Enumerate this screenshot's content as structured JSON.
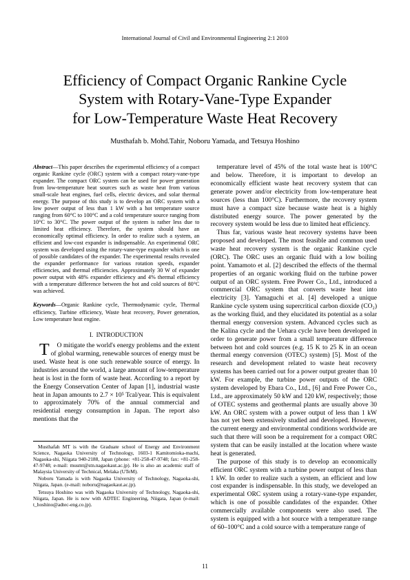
{
  "journal": "International Journal of Civil and Environmental Engineering 2:1 2010",
  "title_line1": "Efficiency of Compact Organic Rankine Cycle",
  "title_line2": "System with Rotary-Vane-Type Expander",
  "title_line3": "for Low-Temperature Waste Heat Recovery",
  "authors": "Musthafah b. Mohd.Tahir, Noboru Yamada, and Tetsuya Hoshino",
  "abstract_label": "Abstract",
  "abstract_text": "—This paper describes the experimental efficiency of a compact organic Rankine cycle (ORC) system with a compact rotary-vane-type expander. The compact ORC system can be used for power generation from low-temperature heat sources such as waste heat from various small-scale heat engines, fuel cells, electric devices, and solar thermal energy. The purpose of this study is to develop an ORC system with a low power output of less than 1 kW with a hot temperature source ranging from 60°C to 100°C and a cold temperature source ranging from 10°C to 30°C. The power output of the system is rather less due to limited heat efficiency. Therefore, the system should have an economically optimal efficiency. In order to realize such a system, an efficient and low-cost expander is indispensable. An experimental ORC system was developed using the rotary-vane-type expander which is one of possible candidates of the expander. The experimental results revealed the expander performance for various rotation speeds, expander efficiencies, and thermal efficiencies. Approximately 30 W of expander power output with 48% expander efficiency and 4% thermal efficiency with a temperature difference between the hot and cold sources of 80°C was achieved.",
  "keywords_label": "Keywords",
  "keywords_text": "—Organic Rankine cycle, Thermodynamic cycle, Thermal efficiency, Turbine efficiency, Waste heat recovery, Power generation, Low temperature heat engine.",
  "section1_num": "I.",
  "section1_title": "INTRODUCTION",
  "intro_dropcap": "T",
  "intro_first": "O mitigate the world's energy problems and the extent of global warming, renewable sources of energy must be used. Waste heat is one such renewable source of energy. In industries around the world, a large amount of low-temperature heat is lost in the form of waste heat. According to a report by the Energy Conservation Center of Japan [1], industrial waste heat in Japan amounts to 2.7 × 10⁵ Tcal/year. This is equivalent to approximately 70% of the annual commercial and residential energy consumption in Japan. The report also mentions that the",
  "col2_p1": "temperature level of 45% of the total waste heat is 100°C and below. Therefore, it is important to develop an economically efficient waste heat recovery system that can generate power and/or electricity from low-temperature heat sources (less than 100°C). Furthermore, the recovery system must have a compact size because waste heat is a highly distributed energy source. The power generated by the recovery system would be less due to limited heat efficiency.",
  "col2_p2": "Thus far, various waste heat recovery systems have been proposed and developed. The most feasible and common used waste heat recovery system is the organic Rankine cycle (ORC). The ORC uses an organic fluid with a low boiling point. Yamamoto et al. [2] described the effects of the thermal properties of an organic working fluid on the turbine power output of an ORC system. Free Power Co., Ltd., introduced a commercial ORC system that converts waste heat into electricity [3]. Yamaguchi et al. [4] developed a unique Rankine cycle system using supercritical carbon dioxide (CO₂) as the working fluid, and they elucidated its potential as a solar thermal energy conversion system. Advanced cycles such as the Kalina cycle and the Uehara cycle have been developed in order to generate power from a small temperature difference between hot and cold sources (e.g. 15 K to 25 K in an ocean thermal energy conversion (OTEC) system) [5]. Most of the research and development related to waste heat recovery systems has been carried out for a power output greater than 10 kW. For example, the turbine power outputs of the ORC system developed by Ebara Co., Ltd., [6] and Free Power Co., Ltd., are approximately 50 kW and 120 kW, respectively; those of OTEC systems and geothermal plants are usually above 30 kW. An ORC system with a power output of less than 1 kW has not yet been extensively studied and developed. However, the current energy and environmental conditions worldwide are such that there will soon be a requirement for a compact ORC system that can be easily installed at the location where waste heat is generated.",
  "col2_p3": "The purpose of this study is to develop an economically efficient ORC system with a turbine power output of less than 1 kW. In order to realize such a system, an efficient and low cost expander is indispensable. In this study, we developed an experimental ORC system using a rotary-vane-type expander, which is one of possible candidates of the expander. Other commercially available components were also used. The system is equipped with a hot source with a temperature range of 60–100°C and a cold source with a temperature range of",
  "fn1": "Musthafah MT is with the Graduate school of Energy and Environment Science, Nagaoka University of Technology, 1603-1 Kamitomioka-machi, Nagaoka-shi, Niigata 940-2188, Japan (phone: +81-258-47-9748; fax: +81-258-47-9748; e-mail: musmt@stn.nagaokaut.ac.jp). He is also an academic staff of Malaysia University of Technical, Melaka (UTeM).",
  "fn2": "Noboru Yamada is with Nagaoka University of Technology, Nagaoka-shi, Niigata, Japan. (e-mail: noboru@nagaokaut.ac.jp).",
  "fn3": "Tetsuya Hoshino was with Nagaoka University of Technology, Nagaoka-shi, Niigata, Japan. He is now with ADTEC Engineering, Niigata, Japan (e-mail: t_hoshino@adtec-eng.co.jp).",
  "page_number": "11"
}
